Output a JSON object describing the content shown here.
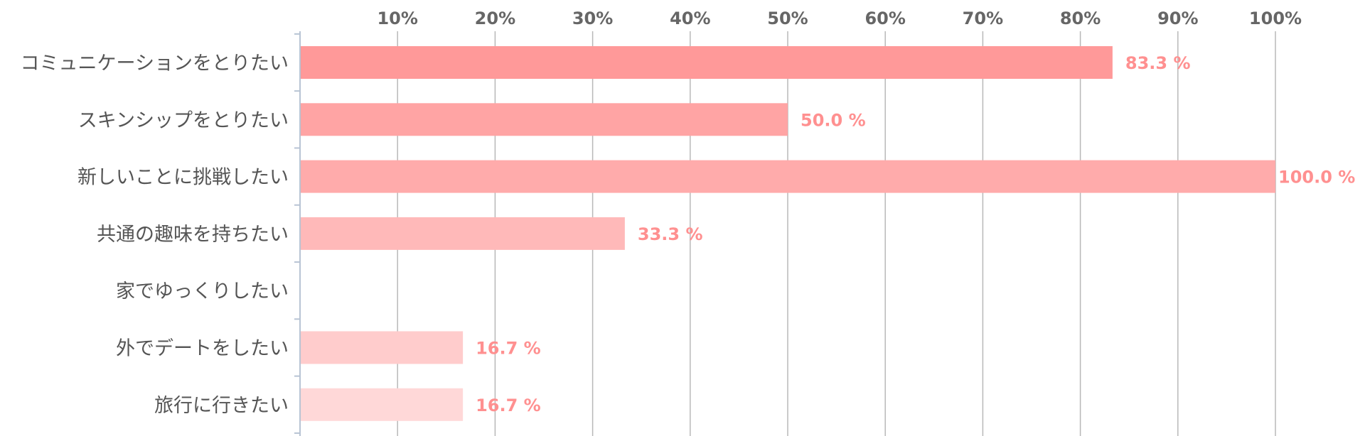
{
  "chart_data": {
    "type": "bar",
    "orientation": "horizontal",
    "categories": [
      "コミュニケーションをとりたい",
      "スキンシップをとりたい",
      "新しいことに挑戦したい",
      "共通の趣味を持ちたい",
      "家でゆっくりしたい",
      "外でデートをしたい",
      "旅行に行きたい"
    ],
    "values": [
      83.3,
      50.0,
      100.0,
      33.3,
      0,
      16.7,
      16.7
    ],
    "value_labels": [
      "83.3 %",
      "50.0 %",
      "100.0 %",
      "33.3 %",
      "",
      "16.7 %",
      "16.7 %"
    ],
    "x_ticks": [
      "10%",
      "20%",
      "30%",
      "40%",
      "50%",
      "60%",
      "70%",
      "80%",
      "90%",
      "100%"
    ],
    "xlim": [
      0,
      100
    ],
    "grid": true,
    "legend": "none",
    "bar_colors": [
      "#ff9999",
      "#ffa4a4",
      "#ffabab",
      "#ffb9b9",
      "#ffc4c4",
      "#ffcccc",
      "#ffd8d8"
    ],
    "value_label_color": "#ff9090",
    "axis_color": "#b8c4d4",
    "grid_color": "#b8b8b8"
  }
}
